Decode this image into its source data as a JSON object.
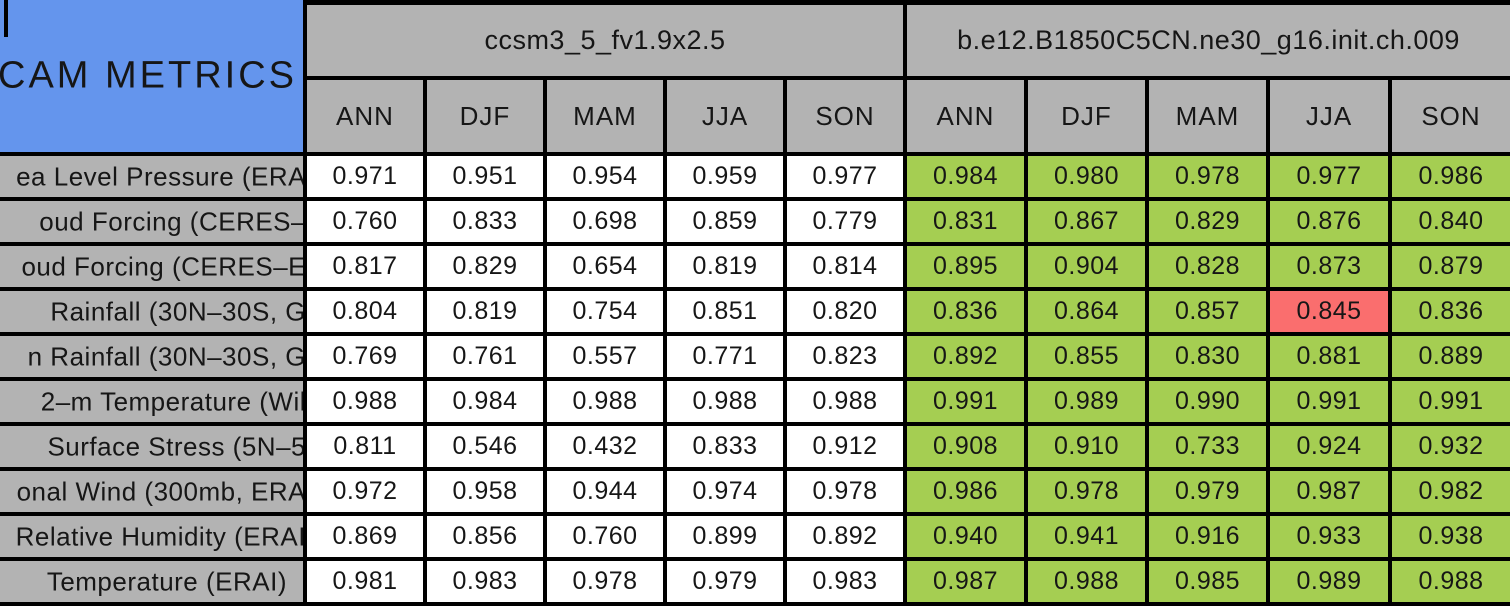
{
  "title": "CAM METRICS",
  "colors": {
    "corner-blue": "#6495ed",
    "header-gray": "#b3b3b3",
    "model1-white": "#ffffff",
    "model2-green": "#a5ce52",
    "highlight-red": "#fa6e6e",
    "border-black": "#000000"
  },
  "chart_data": {
    "type": "table",
    "corner_label": "CAM METRICS",
    "column_groups": [
      {
        "label": "ccsm3_5_fv1.9x2.5",
        "columns": [
          "ANN",
          "DJF",
          "MAM",
          "JJA",
          "SON"
        ]
      },
      {
        "label": "b.e12.B1850C5CN.ne30_g16.init.ch.009",
        "columns": [
          "ANN",
          "DJF",
          "MAM",
          "JJA",
          "SON"
        ]
      }
    ],
    "rows": [
      {
        "label": "ea Level Pressure (ERA",
        "m1": [
          "0.971",
          "0.951",
          "0.954",
          "0.959",
          "0.977"
        ],
        "m2": [
          "0.984",
          "0.980",
          "0.978",
          "0.977",
          "0.986"
        ]
      },
      {
        "label": "oud Forcing (CERES–",
        "m1": [
          "0.760",
          "0.833",
          "0.698",
          "0.859",
          "0.779"
        ],
        "m2": [
          "0.831",
          "0.867",
          "0.829",
          "0.876",
          "0.840"
        ]
      },
      {
        "label": "oud Forcing (CERES–E",
        "m1": [
          "0.817",
          "0.829",
          "0.654",
          "0.819",
          "0.814"
        ],
        "m2": [
          "0.895",
          "0.904",
          "0.828",
          "0.873",
          "0.879"
        ]
      },
      {
        "label": "Rainfall (30N–30S, G",
        "m1": [
          "0.804",
          "0.819",
          "0.754",
          "0.851",
          "0.820"
        ],
        "m2": [
          "0.836",
          "0.864",
          "0.857",
          "0.845",
          "0.836"
        ]
      },
      {
        "label": "n Rainfall (30N–30S, G",
        "m1": [
          "0.769",
          "0.761",
          "0.557",
          "0.771",
          "0.823"
        ],
        "m2": [
          "0.892",
          "0.855",
          "0.830",
          "0.881",
          "0.889"
        ]
      },
      {
        "label": "2–m Temperature (Wil",
        "m1": [
          "0.988",
          "0.984",
          "0.988",
          "0.988",
          "0.988"
        ],
        "m2": [
          "0.991",
          "0.989",
          "0.990",
          "0.991",
          "0.991"
        ]
      },
      {
        "label": "Surface Stress (5N–5",
        "m1": [
          "0.811",
          "0.546",
          "0.432",
          "0.833",
          "0.912"
        ],
        "m2": [
          "0.908",
          "0.910",
          "0.733",
          "0.924",
          "0.932"
        ]
      },
      {
        "label": "onal Wind (300mb, ERA",
        "m1": [
          "0.972",
          "0.958",
          "0.944",
          "0.974",
          "0.978"
        ],
        "m2": [
          "0.986",
          "0.978",
          "0.979",
          "0.987",
          "0.982"
        ]
      },
      {
        "label": "Relative Humidity (ERAI",
        "m1": [
          "0.869",
          "0.856",
          "0.760",
          "0.899",
          "0.892"
        ],
        "m2": [
          "0.940",
          "0.941",
          "0.916",
          "0.933",
          "0.938"
        ]
      },
      {
        "label": "Temperature (ERAI)",
        "m1": [
          "0.981",
          "0.983",
          "0.978",
          "0.979",
          "0.983"
        ],
        "m2": [
          "0.987",
          "0.988",
          "0.985",
          "0.989",
          "0.988"
        ]
      }
    ],
    "highlight_cell": {
      "group_index": 1,
      "row_index": 3,
      "col_index": 3,
      "column": "JJA",
      "value": "0.845"
    },
    "layout_hints": {
      "grid": "on",
      "left_edge_cropped": true,
      "right_edge_cropped": true
    }
  }
}
